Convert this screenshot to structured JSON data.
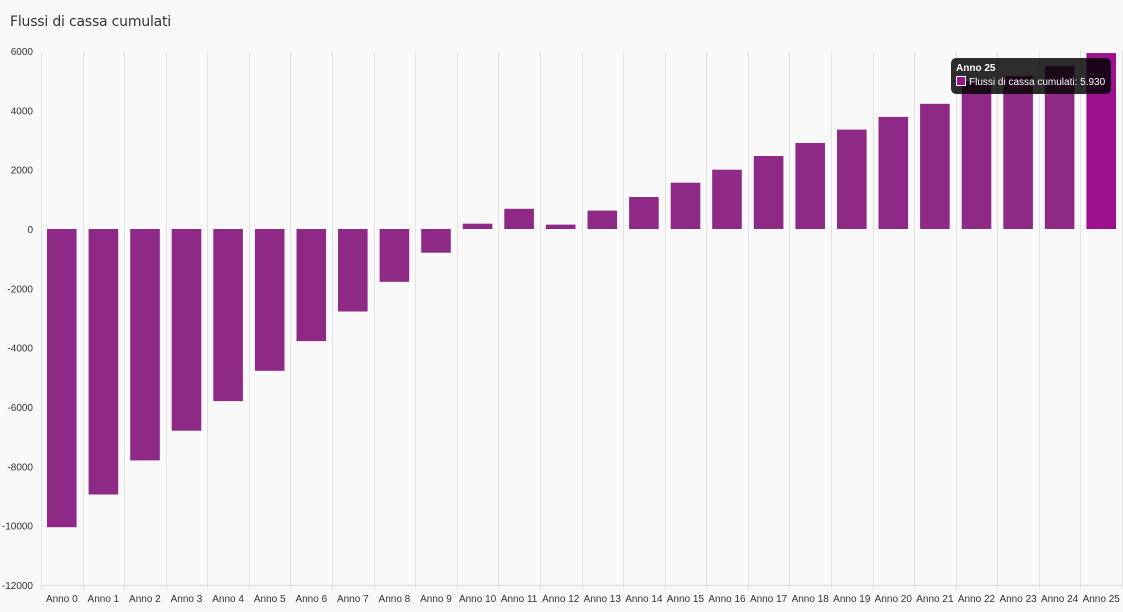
{
  "chart_data": {
    "type": "bar",
    "title": "Flussi di cassa cumulati",
    "xlabel": "",
    "ylabel": "",
    "ylim": [
      -12000,
      6000
    ],
    "yticks": [
      6000,
      4000,
      2000,
      0,
      -2000,
      -4000,
      -6000,
      -8000,
      -10000,
      -12000
    ],
    "grid": true,
    "categories": [
      "Anno 0",
      "Anno 1",
      "Anno 2",
      "Anno 3",
      "Anno 4",
      "Anno 5",
      "Anno 6",
      "Anno 7",
      "Anno 8",
      "Anno 9",
      "Anno 10",
      "Anno 11",
      "Anno 12",
      "Anno 13",
      "Anno 14",
      "Anno 15",
      "Anno 16",
      "Anno 17",
      "Anno 18",
      "Anno 19",
      "Anno 20",
      "Anno 21",
      "Anno 22",
      "Anno 23",
      "Anno 24",
      "Anno 25"
    ],
    "series": [
      {
        "name": "Flussi di cassa cumulati",
        "color": "#8e2a86",
        "highlight_color": "#9c0f8f",
        "values": [
          -10050,
          -8950,
          -7800,
          -6800,
          -5800,
          -4780,
          -3780,
          -2780,
          -1780,
          -800,
          180,
          680,
          150,
          620,
          1080,
          1560,
          2000,
          2460,
          2900,
          3350,
          3780,
          4220,
          4980,
          5150,
          5500,
          5930
        ]
      }
    ]
  },
  "tooltip": {
    "title": "Anno 25",
    "text": "Flussi di cassa cumulati: 5.930",
    "color": "#9c0f8f"
  }
}
